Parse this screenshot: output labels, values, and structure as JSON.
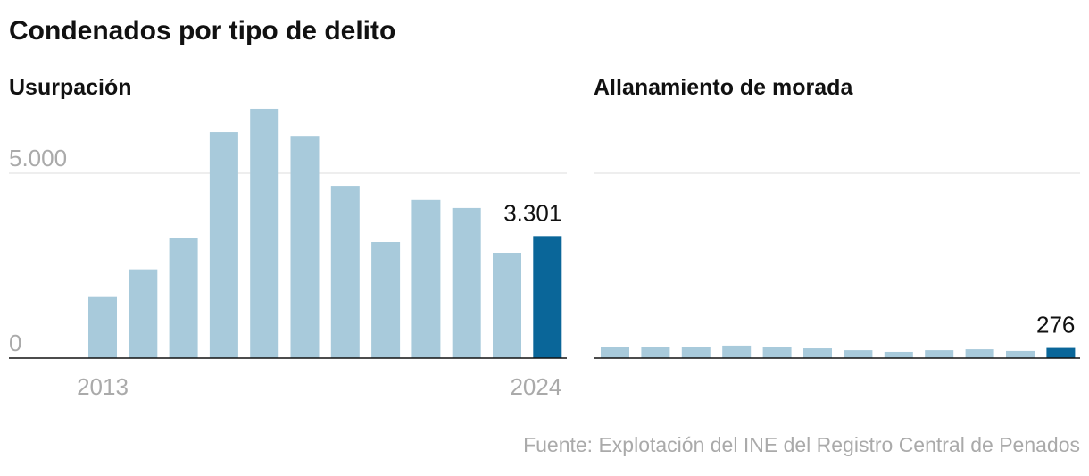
{
  "title": "Condenados por tipo de delito",
  "source": "Fuente: Explotación del INE del Registro Central de Penados",
  "chart_data": [
    {
      "type": "bar",
      "title": "Usurpación",
      "categories": [
        "2013",
        null,
        null,
        null,
        null,
        null,
        null,
        null,
        null,
        null,
        null,
        "2024"
      ],
      "values": [
        1650,
        2400,
        3260,
        6110,
        6740,
        6010,
        4660,
        3140,
        4280,
        4060,
        2850,
        3301
      ],
      "value_labels": [
        null,
        null,
        null,
        null,
        null,
        null,
        null,
        null,
        null,
        null,
        null,
        "3.301"
      ],
      "color": "#a8cadb",
      "highlight_color": "#0a6699",
      "ylim": [
        0,
        7000
      ],
      "yticks": [
        0,
        {
          "value": 5000,
          "label": "5.000"
        }
      ],
      "grid": true
    },
    {
      "type": "bar",
      "title": "Allanamiento de morada",
      "categories": [
        null,
        null,
        null,
        null,
        null,
        null,
        null,
        null,
        null,
        null,
        null,
        null
      ],
      "values": [
        290,
        310,
        290,
        340,
        310,
        265,
        215,
        170,
        215,
        240,
        195,
        276
      ],
      "value_labels": [
        null,
        null,
        null,
        null,
        null,
        null,
        null,
        null,
        null,
        null,
        null,
        "276"
      ],
      "color": "#a8cadb",
      "highlight_color": "#0a6699",
      "ylim": [
        0,
        7000
      ],
      "gridlines": [
        5000
      ],
      "grid": true
    }
  ]
}
